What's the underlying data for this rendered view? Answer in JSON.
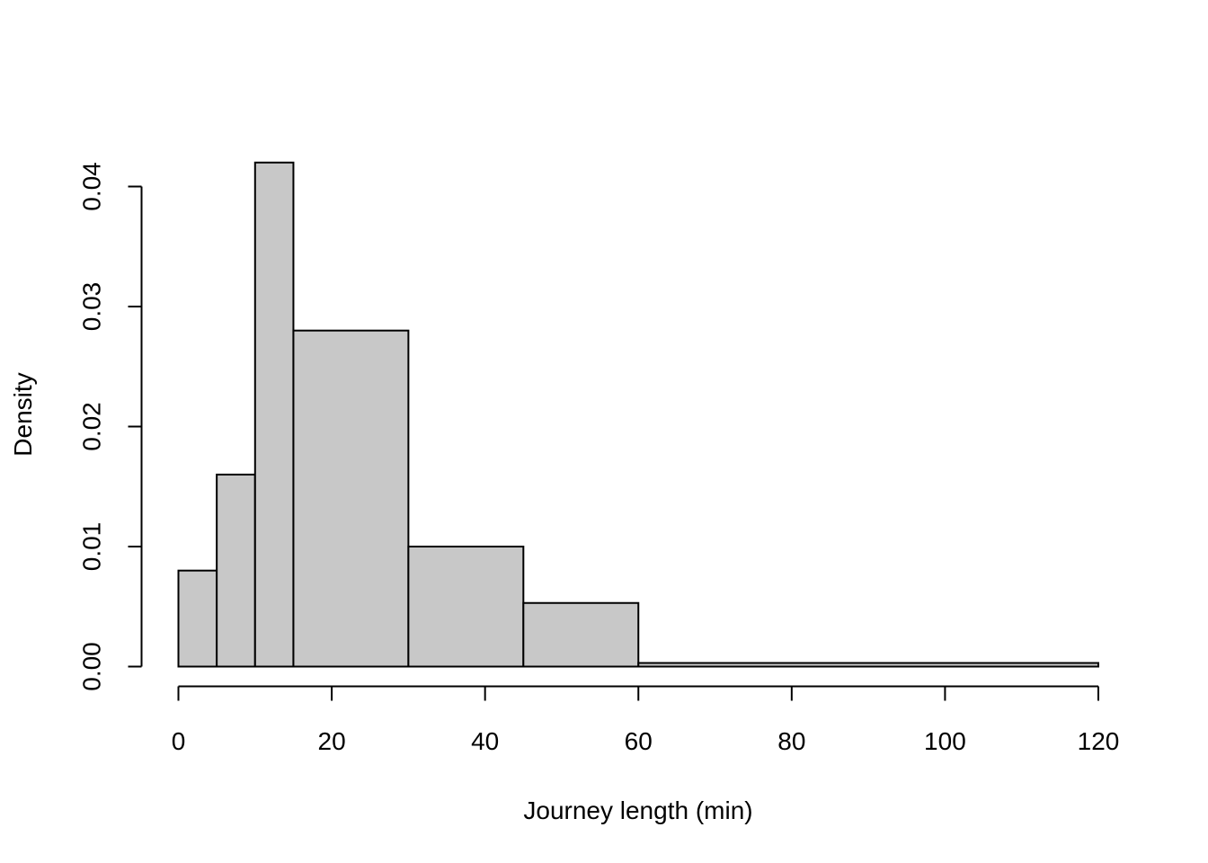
{
  "chart_data": {
    "type": "bar",
    "histogram": true,
    "title": "",
    "xlabel": "Journey length (min)",
    "ylabel": "Density",
    "xlim": [
      0,
      120
    ],
    "ylim": [
      0,
      0.042
    ],
    "x_ticks": [
      {
        "value": 0,
        "label": "0"
      },
      {
        "value": 20,
        "label": "20"
      },
      {
        "value": 40,
        "label": "40"
      },
      {
        "value": 60,
        "label": "60"
      },
      {
        "value": 80,
        "label": "80"
      },
      {
        "value": 100,
        "label": "100"
      },
      {
        "value": 120,
        "label": "120"
      }
    ],
    "y_ticks": [
      {
        "value": 0,
        "label": "0.00"
      },
      {
        "value": 0.01,
        "label": "0.01"
      },
      {
        "value": 0.02,
        "label": "0.02"
      },
      {
        "value": 0.03,
        "label": "0.03"
      },
      {
        "value": 0.04,
        "label": "0.04"
      }
    ],
    "bins": [
      {
        "from": 0,
        "to": 5,
        "density": 0.008
      },
      {
        "from": 5,
        "to": 10,
        "density": 0.016
      },
      {
        "from": 10,
        "to": 15,
        "density": 0.042
      },
      {
        "from": 15,
        "to": 30,
        "density": 0.028
      },
      {
        "from": 30,
        "to": 45,
        "density": 0.01
      },
      {
        "from": 45,
        "to": 60,
        "density": 0.0053
      },
      {
        "from": 60,
        "to": 120,
        "density": 0.0003
      }
    ],
    "bar_color": "#c8c8c8",
    "grid": false,
    "legend": "none"
  }
}
